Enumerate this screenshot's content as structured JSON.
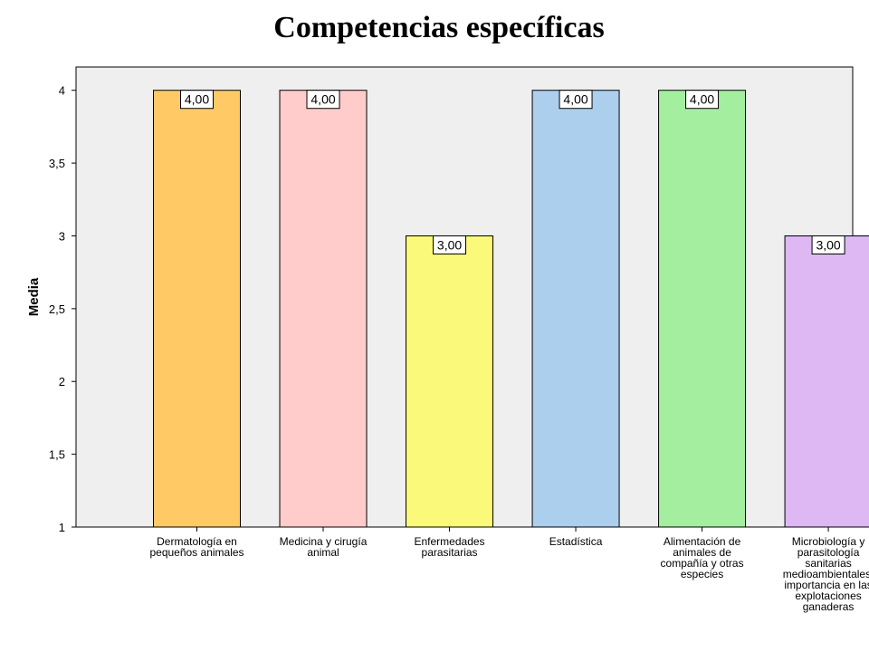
{
  "chart_data": {
    "type": "bar",
    "title": "Competencias específicas",
    "ylabel": "Media",
    "xlabel": "",
    "ylim": [
      1,
      4.16
    ],
    "yticks": [
      1,
      1.5,
      2,
      2.5,
      3,
      3.5,
      4
    ],
    "ytick_labels": [
      "1",
      "1,5",
      "2",
      "2,5",
      "3",
      "3,5",
      "4"
    ],
    "grid": false,
    "categories": [
      [
        "Dermatología en",
        "pequeños animales"
      ],
      [
        "Medicina y cirugía",
        "animal"
      ],
      [
        "Enfermedades",
        "parasitarias"
      ],
      [
        "Estadística"
      ],
      [
        "Alimentación de",
        "animales de",
        "compañía y otras",
        "especies"
      ],
      [
        "Microbiología y",
        "parasitología",
        "sanitarias",
        "medioambientales:",
        "importancia en las",
        "explotaciones",
        "ganaderas"
      ]
    ],
    "values": [
      4,
      4,
      3,
      4,
      4,
      3
    ],
    "data_labels": [
      "4,00",
      "4,00",
      "3,00",
      "4,00",
      "4,00",
      "3,00"
    ],
    "colors": [
      "#FFC966",
      "#FFCBCB",
      "#FBF97A",
      "#ADCFEE",
      "#A4EEA0",
      "#DDB8F2"
    ],
    "plot_background": "#EFEFEF"
  }
}
